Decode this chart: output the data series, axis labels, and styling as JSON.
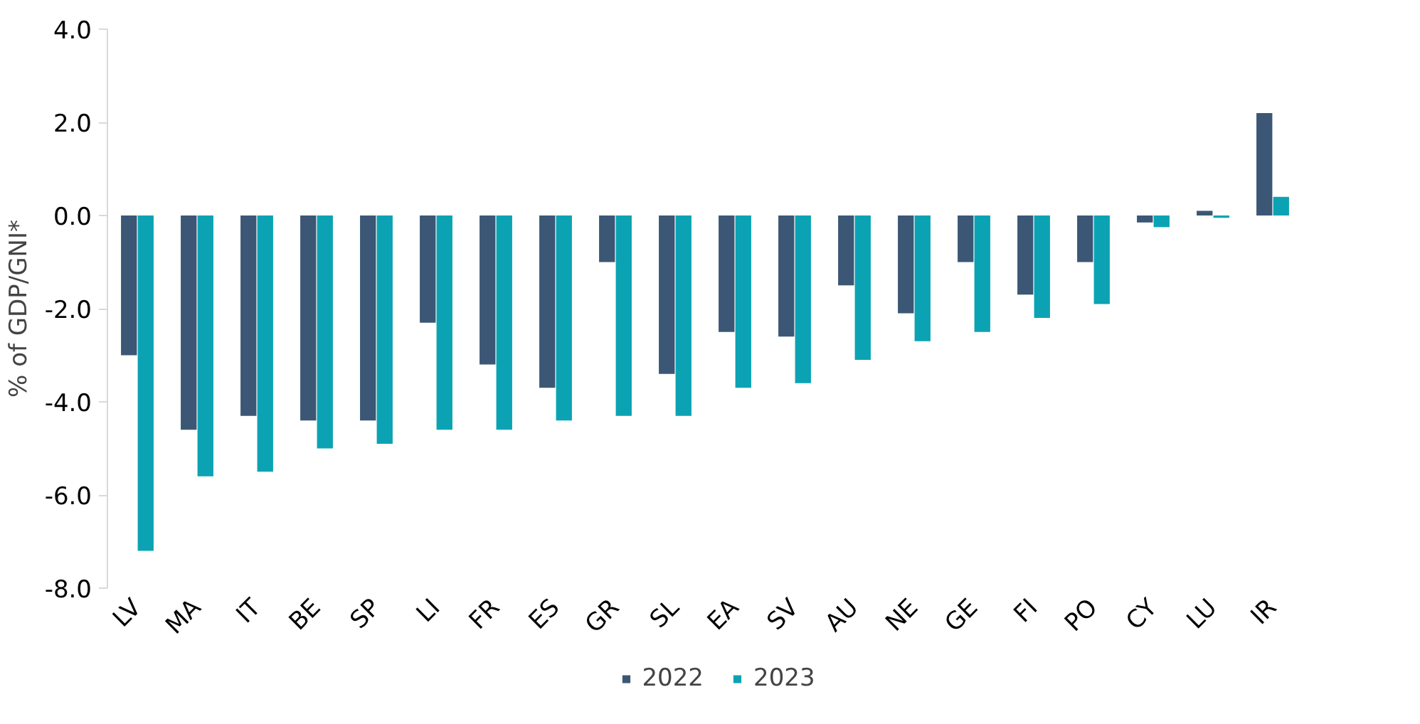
{
  "chart_data": {
    "type": "bar",
    "ylabel": "% of GDP/GNI*",
    "categories": [
      "LV",
      "MA",
      "IT",
      "BE",
      "SP",
      "LI",
      "FR",
      "ES",
      "GR",
      "SL",
      "EA",
      "SV",
      "AU",
      "NE",
      "GE",
      "FI",
      "PO",
      "CY",
      "LU",
      "IR"
    ],
    "series": [
      {
        "name": "2022",
        "color": "#3b5775",
        "values": [
          -3.0,
          -4.6,
          -4.3,
          -4.4,
          -4.4,
          -2.3,
          -3.2,
          -3.7,
          -1.0,
          -3.4,
          -2.5,
          -2.6,
          -1.5,
          -2.1,
          -1.0,
          -1.7,
          -1.0,
          -0.15,
          0.1,
          2.2
        ]
      },
      {
        "name": "2023",
        "color": "#0ba3b3",
        "values": [
          -7.2,
          -5.6,
          -5.5,
          -5.0,
          -4.9,
          -4.6,
          -4.6,
          -4.4,
          -4.3,
          -4.3,
          -3.7,
          -3.6,
          -3.1,
          -2.7,
          -2.5,
          -2.2,
          -1.9,
          -0.25,
          -0.05,
          0.4
        ]
      }
    ],
    "ylim": [
      -8.0,
      4.0
    ],
    "yticks": [
      {
        "value": -8,
        "label": "-8.0"
      },
      {
        "value": -6,
        "label": "-6.0"
      },
      {
        "value": -4,
        "label": "-4.0"
      },
      {
        "value": -2,
        "label": "-2.0"
      },
      {
        "value": 0,
        "label": "0.0"
      },
      {
        "value": 2,
        "label": "2.0"
      },
      {
        "value": 4,
        "label": "4.0"
      }
    ],
    "grid": false,
    "legend": "bottom"
  }
}
